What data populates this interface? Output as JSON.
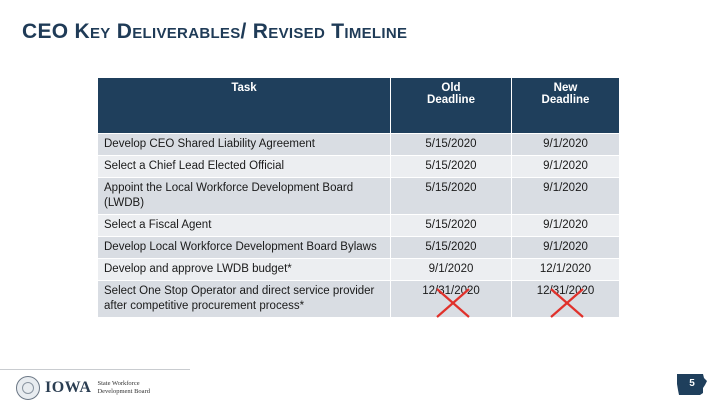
{
  "title": "CEO Key Deliverables/ Revised Timeline",
  "table": {
    "headers": {
      "task": "Task",
      "old_line1": "Old",
      "old_line2": "Deadline",
      "new_line1": "New",
      "new_line2": "Deadline"
    },
    "rows": [
      {
        "task": "Develop CEO Shared Liability Agreement",
        "old": "5/15/2020",
        "new": "9/1/2020"
      },
      {
        "task": "Select a Chief Lead Elected Official",
        "old": "5/15/2020",
        "new": "9/1/2020"
      },
      {
        "task": "Appoint the Local Workforce Development Board (LWDB)",
        "old": "5/15/2020",
        "new": "9/1/2020"
      },
      {
        "task": "Select a Fiscal Agent",
        "old": "5/15/2020",
        "new": "9/1/2020"
      },
      {
        "task": "Develop Local Workforce Development Board Bylaws",
        "old": "5/15/2020",
        "new": "9/1/2020"
      },
      {
        "task": "Develop and approve LWDB budget*",
        "old": "9/1/2020",
        "new": "12/1/2020"
      },
      {
        "task": "Select One Stop Operator and direct service provider after competitive procurement process*",
        "old": "12/31/2020",
        "new": "12/31/2020",
        "crossed_out": true
      }
    ]
  },
  "footer": {
    "logo_text": "IOWA",
    "logo_subtitle": "State Workforce Development Board",
    "page_number": "5"
  },
  "colors": {
    "header_bg": "#1f3f5c",
    "title": "#1f3b57",
    "cross_mark": "#e0312b",
    "row_odd": "#d9dde3",
    "row_even": "#eceef1"
  }
}
